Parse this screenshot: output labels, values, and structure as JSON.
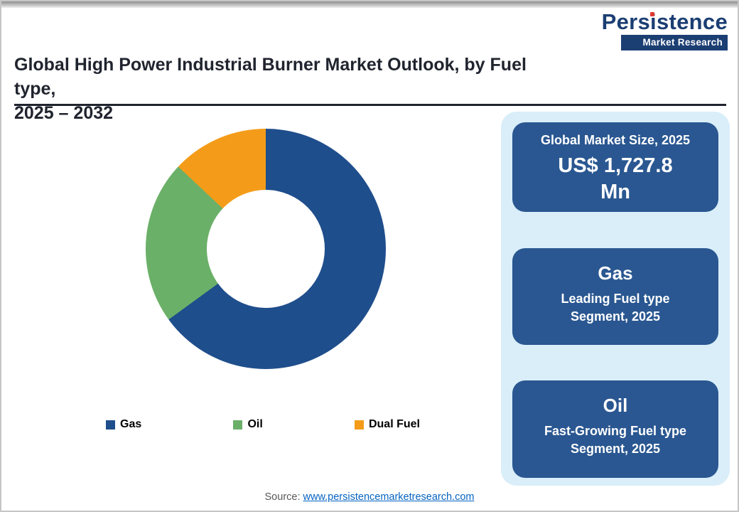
{
  "header": {
    "title_line1": "Global High Power Industrial Burner Market Outlook, by Fuel type,",
    "title_line2": "2025 – 2032",
    "logo": {
      "name_pre": "Pers",
      "name_i": "i",
      "name_post": "stence",
      "subtitle": "Market Research"
    }
  },
  "chart_data": {
    "type": "pie",
    "donut": true,
    "title": "Global High Power Industrial Burner Market Outlook, by Fuel type, 2025 – 2032",
    "categories": [
      "Gas",
      "Oil",
      "Dual Fuel"
    ],
    "values": [
      65,
      22,
      13
    ],
    "values_note": "percent share, estimated from segment angles (no numeric labels shown)",
    "colors": [
      "#1F4E8C",
      "#6BB068",
      "#F49C19"
    ],
    "start_angle_deg": 0,
    "direction": "clockwise",
    "legend_position": "bottom"
  },
  "sidebar": {
    "panel_color": "#D9EEF9",
    "box_color": "#2A5791",
    "boxes": [
      {
        "line1": "Global Market Size, 2025",
        "line2": "US$ 1,727.8 Mn"
      },
      {
        "line1": "Gas",
        "line2": "Leading Fuel type Segment, 2025"
      },
      {
        "line1": "Oil",
        "line2": "Fast-Growing Fuel type Segment, 2025"
      }
    ]
  },
  "footer": {
    "source_label": "Source:",
    "source_link_text": "www.persistencemarketresearch.com"
  },
  "brand_colors": {
    "logo_navy": "#1B3E73",
    "logo_red": "#E03A2F",
    "title_text": "#20242E",
    "link_blue": "#0563C1"
  }
}
